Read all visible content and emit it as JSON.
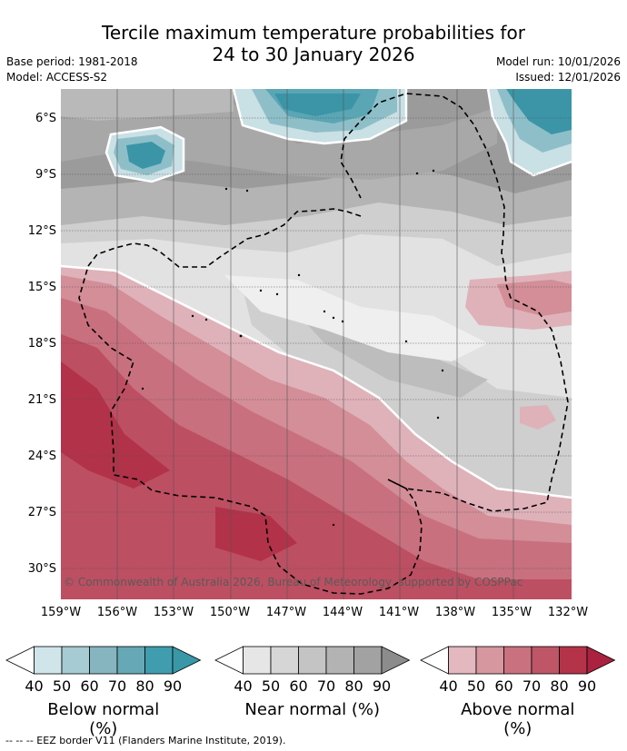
{
  "header": {
    "title_line1": "Tercile maximum temperature probabilities for",
    "title_line2": "24 to 30 January 2026",
    "base_period": "Base period: 1981-2018",
    "model": "Model: ACCESS-S2",
    "model_run": "Model run: 10/01/2026",
    "issued": "Issued: 12/01/2026"
  },
  "map": {
    "latitude_labels": [
      "6°S",
      "9°S",
      "12°S",
      "15°S",
      "18°S",
      "21°S",
      "24°S",
      "27°S",
      "30°S"
    ],
    "longitude_labels": [
      "159°W",
      "156°W",
      "153°W",
      "150°W",
      "147°W",
      "144°W",
      "141°W",
      "138°W",
      "135°W",
      "132°W"
    ],
    "copyright": "© Commonwealth of Australia 2026, Bureau of Meteorology, supported by COSPPac",
    "regions": [
      "below-normal-probability",
      "near-normal-probability",
      "above-normal-probability"
    ]
  },
  "colorbars": [
    {
      "label": "Below normal (%)",
      "ticks": [
        "40",
        "50",
        "60",
        "70",
        "80",
        "90"
      ],
      "colors": [
        "#ffffff",
        "#cfe5ea",
        "#a6cbd2",
        "#86b5c0",
        "#66a8b5",
        "#3f9dae",
        "#3a97a8"
      ]
    },
    {
      "label": "Near normal (%)",
      "ticks": [
        "40",
        "50",
        "60",
        "70",
        "80",
        "90"
      ],
      "colors": [
        "#ffffff",
        "#e6e6e6",
        "#d6d6d6",
        "#c4c4c4",
        "#b3b3b3",
        "#a2a2a2",
        "#8c8c8c"
      ]
    },
    {
      "label": "Above normal (%)",
      "ticks": [
        "40",
        "50",
        "60",
        "70",
        "80",
        "90"
      ],
      "colors": [
        "#ffffff",
        "#e4b8bf",
        "#d6979f",
        "#c9717f",
        "#bf5668",
        "#b53349",
        "#aa2240"
      ]
    }
  ],
  "footnote": "--  --  -- EEZ border V11 (Flanders Marine Institute, 2019).",
  "colors": {
    "grey_dark": "#9b9b9b",
    "grey_mid": "#b4b4b4",
    "grey_light": "#cfcfcf",
    "grey_pale": "#e2e2e2",
    "red_pale": "#dfb2ba",
    "red_light": "#d38e98",
    "red_mid": "#c9707e",
    "red_strong": "#bd4f62",
    "red_dark": "#b23249",
    "teal_pale": "#c9e0e5",
    "teal_light": "#8ebfc9",
    "teal_mid": "#5aa6b4",
    "teal_dark": "#3b95a7"
  }
}
